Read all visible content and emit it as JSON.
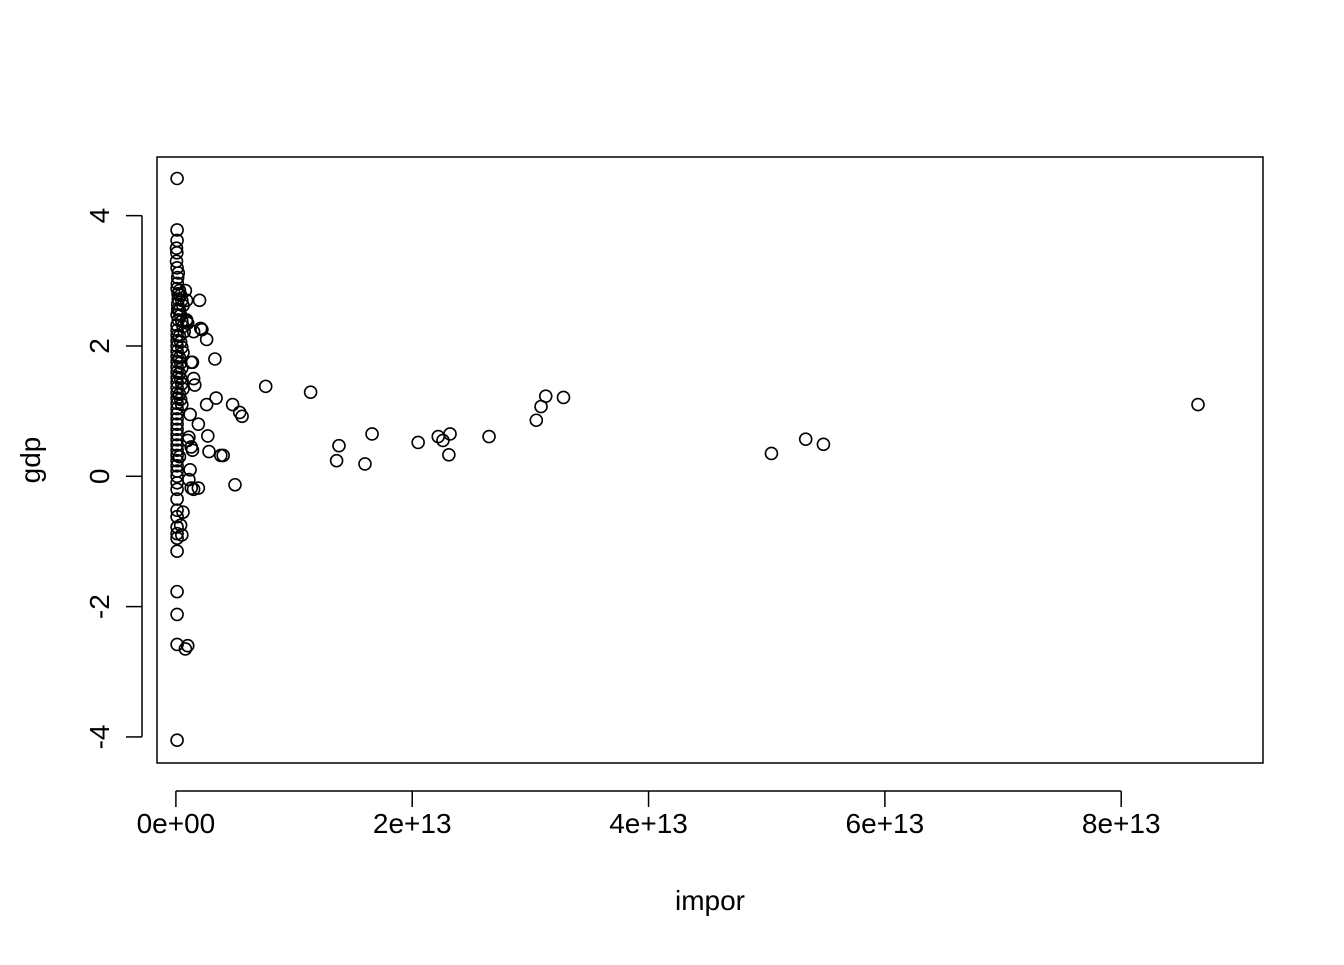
{
  "chart_data": {
    "type": "scatter",
    "title": "",
    "xlabel": "impor",
    "ylabel": "gdp",
    "xlim": [
      -1600000000000.0,
      92000000000000.0
    ],
    "ylim": [
      -4.4,
      4.9
    ],
    "x_ticks": [
      0,
      20000000000000.0,
      40000000000000.0,
      60000000000000.0,
      80000000000000.0
    ],
    "x_tick_labels": [
      "0e+00",
      "2e+13",
      "4e+13",
      "6e+13",
      "8e+13"
    ],
    "y_ticks": [
      -4,
      -2,
      0,
      2,
      4
    ],
    "y_tick_labels": [
      "-4",
      "-2",
      "0",
      "2",
      "4"
    ],
    "grid": false,
    "legend": "none",
    "marker": "open-circle",
    "marker_color": "#000000",
    "x_values": [
      100000000000.0,
      100000000000.0,
      100000000000.0,
      50000000000.0,
      80000000000.0,
      50000000000.0,
      100000000000.0,
      200000000000.0,
      150000000000.0,
      120000000000.0,
      100000000000.0,
      180000000000.0,
      200000000000.0,
      150000000000.0,
      150000000000.0,
      100000000000.0,
      200000000000.0,
      100000000000.0,
      100000000000.0,
      100000000000.0,
      100000000000.0,
      100000000000.0,
      100000000000.0,
      100000000000.0,
      100000000000.0,
      100000000000.0,
      100000000000.0,
      100000000000.0,
      100000000000.0,
      100000000000.0,
      100000000000.0,
      100000000000.0,
      100000000000.0,
      100000000000.0,
      100000000000.0,
      100000000000.0,
      100000000000.0,
      100000000000.0,
      100000000000.0,
      100000000000.0,
      100000000000.0,
      100000000000.0,
      100000000000.0,
      100000000000.0,
      100000000000.0,
      100000000000.0,
      100000000000.0,
      100000000000.0,
      100000000000.0,
      100000000000.0,
      100000000000.0,
      100000000000.0,
      100000000000.0,
      100000000000.0,
      100000000000.0,
      100000000000.0,
      100000000000.0,
      100000000000.0,
      100000000000.0,
      100000000000.0,
      300000000000.0,
      400000000000.0,
      500000000000.0,
      600000000000.0,
      300000000000.0,
      400000000000.0,
      500000000000.0,
      600000000000.0,
      700000000000.0,
      300000000000.0,
      400000000000.0,
      500000000000.0,
      600000000000.0,
      300000000000.0,
      400000000000.0,
      500000000000.0,
      300000000000.0,
      400000000000.0,
      500000000000.0,
      600000000000.0,
      300000000000.0,
      400000000000.0,
      500000000000.0,
      800000000000.0,
      900000000000.0,
      900000000000.0,
      1000000000000.0,
      1200000000000.0,
      1300000000000.0,
      1500000000000.0,
      1600000000000.0,
      1400000000000.0,
      1000000000000.0,
      1100000000000.0,
      1300000000000.0,
      1400000000000.0,
      1900000000000.0,
      2000000000000.0,
      2200000000000.0,
      2600000000000.0,
      3300000000000.0,
      1100000000000.0,
      1200000000000.0,
      1300000000000.0,
      1500000000000.0,
      1900000000000.0,
      2700000000000.0,
      2800000000000.0,
      2600000000000.0,
      3400000000000.0,
      3800000000000.0,
      4000000000000.0,
      4800000000000.0,
      5400000000000.0,
      5600000000000.0,
      5000000000000.0,
      2100000000000.0,
      1500000000000.0,
      900000000000.0,
      1000000000000.0,
      800000000000.0,
      600000000000.0,
      500000000000.0,
      400000000000.0,
      300000000000.0,
      7600000000000.0,
      11400000000000.0,
      13600000000000.0,
      13800000000000.0,
      16000000000000.0,
      16600000000000.0,
      20500000000000.0,
      22200000000000.0,
      22600000000000.0,
      23100000000000.0,
      23200000000000.0,
      26500000000000.0,
      30500000000000.0,
      30900000000000.0,
      31300000000000.0,
      32800000000000.0,
      50400000000000.0,
      53300000000000.0,
      54800000000000.0,
      86500000000000.0
    ],
    "y_values": [
      4.57,
      3.78,
      3.62,
      3.5,
      3.43,
      3.3,
      3.2,
      3.12,
      3.05,
      2.96,
      2.88,
      2.8,
      2.72,
      2.64,
      2.56,
      2.48,
      2.4,
      2.32,
      2.24,
      2.16,
      2.08,
      2.0,
      1.92,
      1.84,
      1.76,
      1.68,
      1.6,
      1.52,
      1.44,
      1.36,
      1.28,
      1.2,
      1.12,
      1.04,
      0.96,
      0.88,
      0.8,
      0.72,
      0.64,
      0.56,
      0.48,
      0.4,
      0.32,
      0.24,
      0.16,
      0.08,
      0.0,
      -0.1,
      -0.2,
      -0.35,
      -0.52,
      -0.62,
      -0.78,
      -0.88,
      -0.95,
      -1.15,
      -1.77,
      -2.12,
      -2.58,
      -4.05,
      2.85,
      2.78,
      2.7,
      2.62,
      2.55,
      2.47,
      2.38,
      2.3,
      2.22,
      2.15,
      2.06,
      1.98,
      1.9,
      1.82,
      1.74,
      1.66,
      1.58,
      1.5,
      1.42,
      1.34,
      1.26,
      1.18,
      1.1,
      2.85,
      2.7,
      2.4,
      2.35,
      0.95,
      1.75,
      1.5,
      1.4,
      1.75,
      0.55,
      0.6,
      0.45,
      0.4,
      0.8,
      2.7,
      2.25,
      2.1,
      1.8,
      -0.05,
      0.1,
      -0.18,
      -0.2,
      -0.18,
      0.62,
      0.38,
      1.1,
      1.2,
      0.32,
      0.32,
      1.1,
      0.98,
      0.92,
      -0.13,
      2.27,
      2.22,
      2.38,
      -2.6,
      -2.65,
      -0.55,
      -0.9,
      -0.75,
      0.3,
      1.38,
      1.29,
      0.24,
      0.47,
      0.19,
      0.65,
      0.52,
      0.61,
      0.55,
      0.33,
      0.65,
      0.61,
      0.86,
      1.07,
      1.23,
      1.21,
      0.35,
      0.57,
      0.49,
      1.1
    ]
  }
}
